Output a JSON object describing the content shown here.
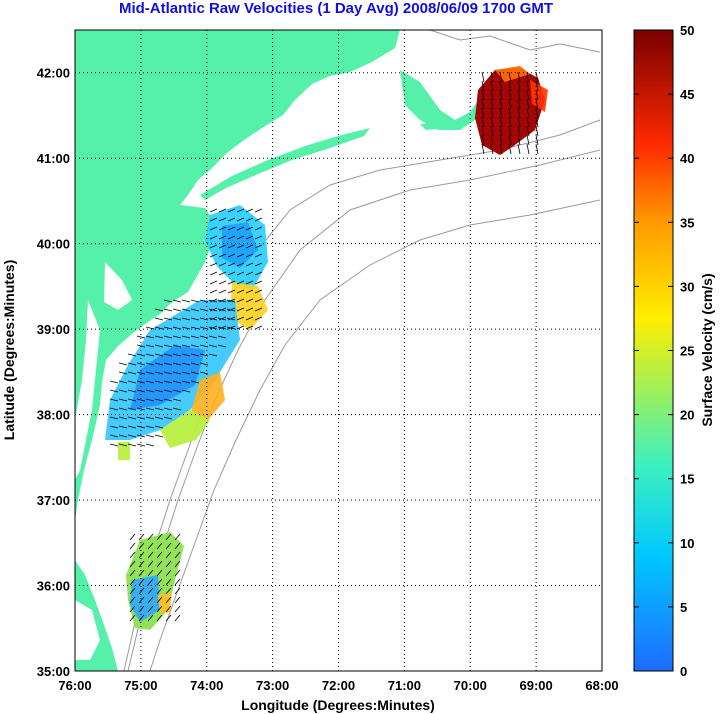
{
  "title": "Mid-Atlantic Raw Velocities (1 Day Avg) 2008/06/09 1700 GMT",
  "map": {
    "x_axis_label": "Longitude (Degrees:Minutes)",
    "y_axis_label": "Latitude (Degrees:Minutes)",
    "lon_ticks": [
      "76:00",
      "75:00",
      "74:00",
      "73:00",
      "72:00",
      "71:00",
      "70:00",
      "69:00",
      "68:00"
    ],
    "lat_ticks": [
      "42:00",
      "41:00",
      "40:00",
      "39:00",
      "38:00",
      "37:00",
      "36:00",
      "35:00"
    ],
    "lon_range": [
      -76,
      -68
    ],
    "lat_range": [
      35,
      42.5
    ],
    "grid": true,
    "land_color": "#55f0aa"
  },
  "colorbar": {
    "label": "Surface Velocity (cm/s)",
    "ticks": [
      "0",
      "5",
      "10",
      "15",
      "20",
      "25",
      "30",
      "35",
      "40",
      "45",
      "50"
    ],
    "range": [
      0,
      50
    ],
    "colormap": "jet"
  }
}
